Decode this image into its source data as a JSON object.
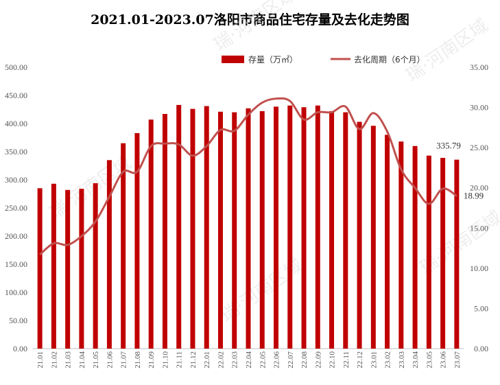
{
  "chart_data": {
    "type": "bar+line",
    "title": "2021.01-2023.07洛阳市商品住宅存量及去化走势图",
    "categories": [
      "21.01",
      "21.02",
      "21.03",
      "21.04",
      "21.05",
      "21.06",
      "21.07",
      "21.08",
      "21.09",
      "21.10",
      "21.11",
      "21.12",
      "22.01",
      "22.02",
      "22.03",
      "22.04",
      "22.05",
      "22.06",
      "22.07",
      "22.08",
      "22.09",
      "22.10",
      "22.11",
      "22.12",
      "23.01",
      "23.02",
      "23.03",
      "23.04",
      "23.05",
      "23.06",
      "23.07"
    ],
    "series": [
      {
        "name": "存量（万㎡）",
        "type": "bar",
        "axis": "left",
        "color": "#C00000",
        "values": [
          285,
          293,
          282,
          284,
          294,
          335,
          365,
          383,
          407,
          417,
          433,
          426,
          431,
          421,
          420,
          427,
          422,
          430,
          432,
          429,
          432,
          422,
          420,
          403,
          396,
          380,
          368,
          360,
          343,
          339,
          335.79
        ]
      },
      {
        "name": "去化周期（6个月）",
        "type": "line",
        "axis": "right",
        "color": "#C0504D",
        "values": [
          11.7,
          13.1,
          12.9,
          14.0,
          15.8,
          18.9,
          22.0,
          22.0,
          25.2,
          25.5,
          25.4,
          24.0,
          25.2,
          27.2,
          27.1,
          29.1,
          30.6,
          31.1,
          30.8,
          28.5,
          29.4,
          29.4,
          30.1,
          27.3,
          29.3,
          27.0,
          22.3,
          20.0,
          18.0,
          19.9,
          18.99
        ]
      }
    ],
    "y_left": {
      "min": 0,
      "max": 500,
      "step": 50,
      "ticks": [
        "0.00",
        "50.00",
        "100.00",
        "150.00",
        "200.00",
        "250.00",
        "300.00",
        "350.00",
        "400.00",
        "450.00",
        "500.00"
      ]
    },
    "y_right": {
      "min": 0,
      "max": 35,
      "step": 5,
      "ticks": [
        "0.00",
        "5.00",
        "10.00",
        "15.00",
        "20.00",
        "25.00",
        "30.00",
        "35.00"
      ]
    },
    "data_labels": {
      "bar_last": "335.79",
      "line_last": "18.99"
    },
    "legend_position": "top-right",
    "grid": false
  },
  "watermark": {
    "text": "瑞·河南区域",
    "logo_text": "瑞"
  }
}
